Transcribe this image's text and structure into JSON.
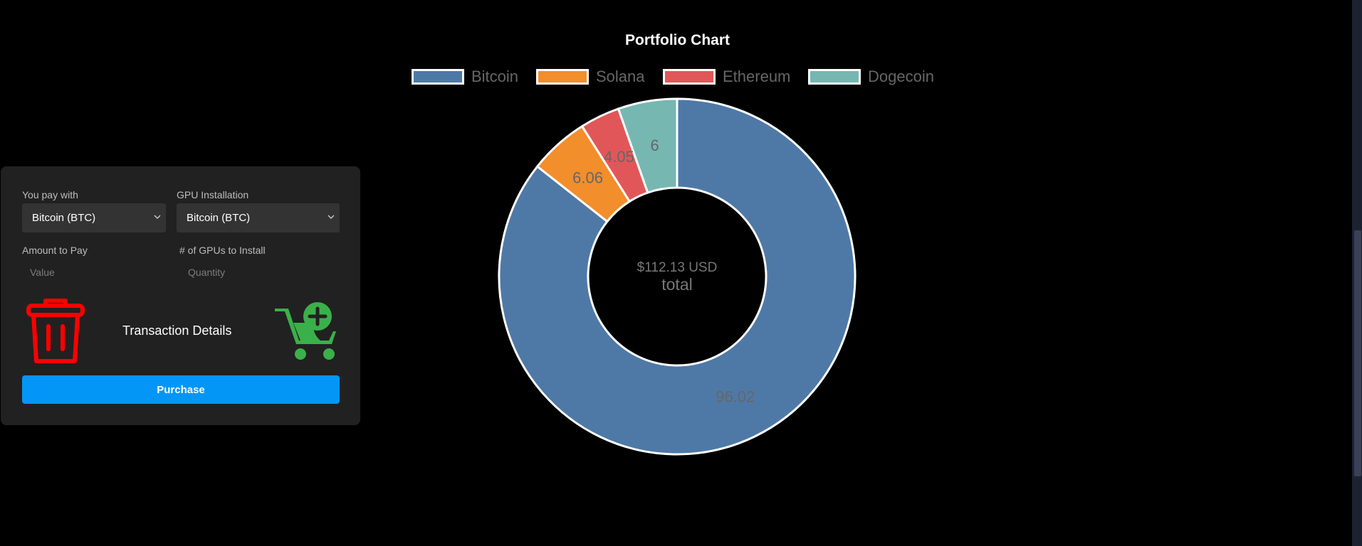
{
  "form": {
    "pay_with_label": "You pay with",
    "pay_with_value": "Bitcoin (BTC)",
    "gpu_install_label": "GPU Installation",
    "gpu_install_value": "Bitcoin (BTC)",
    "amount_label": "Amount to Pay",
    "amount_placeholder": "Value",
    "gpus_label": "# of GPUs to Install",
    "gpus_placeholder": "Quantity",
    "transaction_title": "Transaction Details",
    "purchase_label": "Purchase",
    "trash_icon": "trash-icon",
    "cart_icon": "cart-add-icon",
    "colors": {
      "trash": "#ff0000",
      "cart": "#3ab04a",
      "purchase": "#0396f6"
    }
  },
  "chart_data": {
    "type": "pie",
    "title": "Portfolio Chart",
    "categories": [
      "Bitcoin",
      "Solana",
      "Ethereum",
      "Dogecoin"
    ],
    "values": [
      96.02,
      6.06,
      4.05,
      6
    ],
    "value_labels": [
      "96.02",
      "6.06",
      "4.05",
      "6"
    ],
    "colors": [
      "#4e79a7",
      "#f28e2b",
      "#e15759",
      "#76b7b2"
    ],
    "center_text": "$112.13 USD",
    "center_subtext": "total",
    "legend_position": "top"
  }
}
